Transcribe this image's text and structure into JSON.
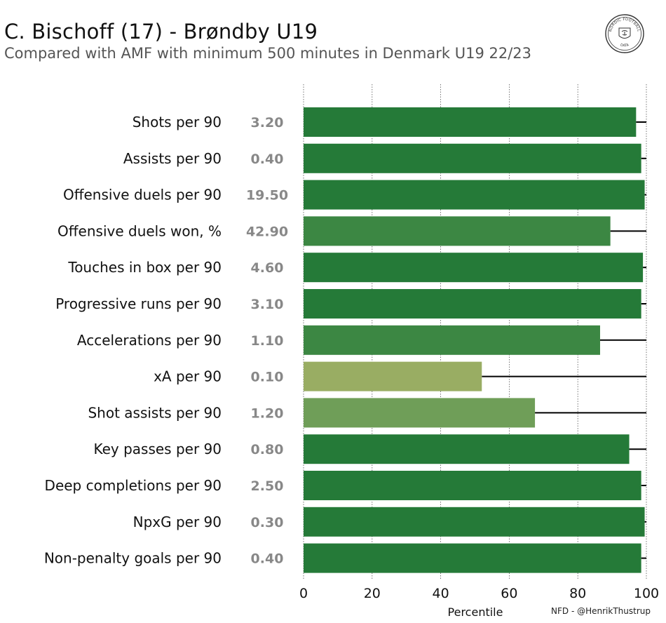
{
  "header": {
    "title": "C. Bischoff (17) - Brøndby U19",
    "subtitle": "Compared with AMF with minimum 500 minutes in Denmark U19 22/23"
  },
  "logo": {
    "text_top": "NORDIC FOOTBALL",
    "text_bottom": "DATA",
    "icon": "lion-crest-icon"
  },
  "credit": "NFD - @HenrikThustrup",
  "colors": {
    "dark_green": "#257a38",
    "mid_green": "#3c8743",
    "olive_green": "#6f9e58",
    "light_olive": "#99ad63",
    "value_gray": "#888888"
  },
  "chart_data": {
    "type": "bar",
    "orientation": "horizontal",
    "xlabel": "Percentile",
    "xlim": [
      0,
      100
    ],
    "xticks": [
      0,
      20,
      40,
      60,
      80,
      100
    ],
    "grid": "vertical dotted",
    "categories": [
      "Shots per 90",
      "Assists per 90",
      "Offensive duels per 90",
      "Offensive duels won, %",
      "Touches in box per 90",
      "Progressive runs per 90",
      "Accelerations per 90",
      "xA per 90",
      "Shot assists per 90",
      "Key passes per 90",
      "Deep completions per 90",
      "NpxG per 90",
      "Non-penalty goals per 90"
    ],
    "value_labels": [
      "3.20",
      "0.40",
      "19.50",
      "42.90",
      "4.60",
      "3.10",
      "1.10",
      "0.10",
      "1.20",
      "0.80",
      "2.50",
      "0.30",
      "0.40"
    ],
    "percentiles": [
      97,
      98.5,
      99.5,
      89.5,
      99,
      98.5,
      86.5,
      52,
      67.5,
      95,
      98.5,
      99.5,
      98.5
    ],
    "bar_colors": [
      "#257a38",
      "#257a38",
      "#257a38",
      "#3c8743",
      "#257a38",
      "#257a38",
      "#3c8743",
      "#99ad63",
      "#6f9e58",
      "#257a38",
      "#257a38",
      "#257a38",
      "#257a38"
    ]
  }
}
